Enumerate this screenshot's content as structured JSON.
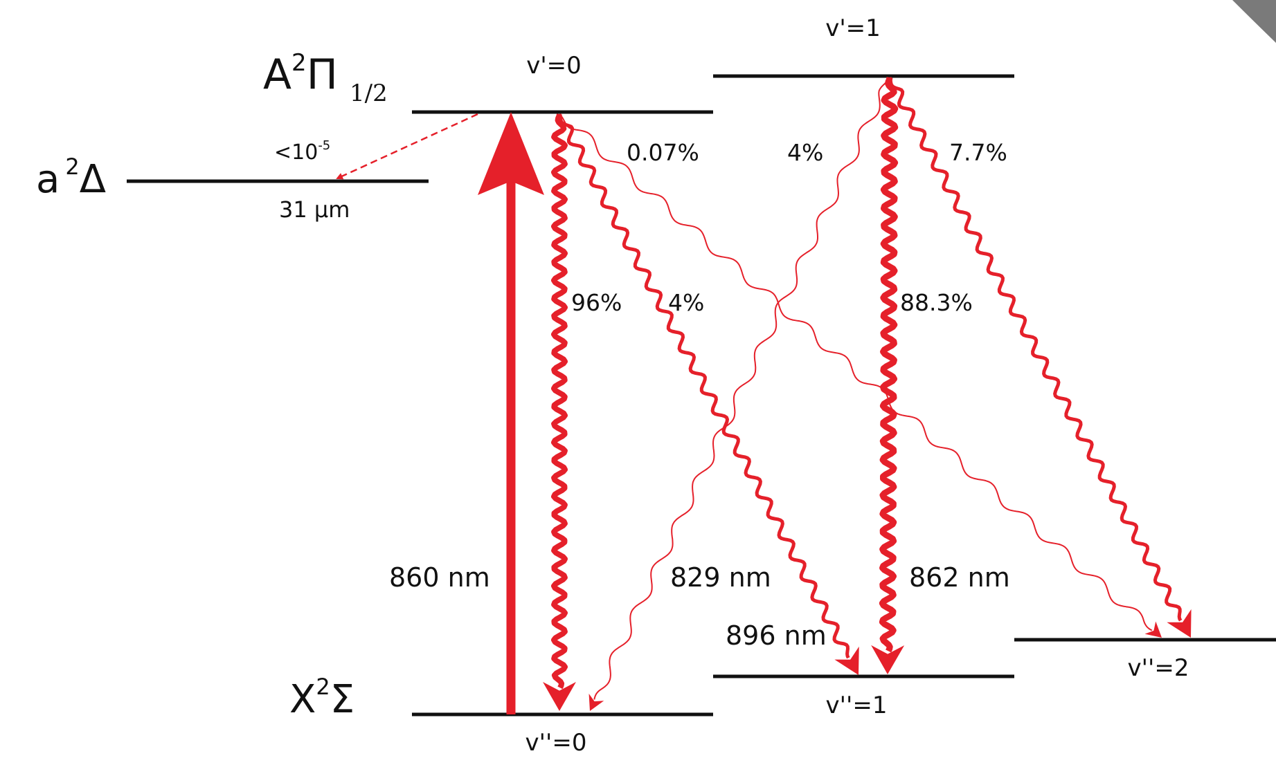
{
  "colors": {
    "level": "#111111",
    "transition": "#e5202a"
  },
  "states": {
    "A": {
      "letter": "A",
      "sup": "2",
      "symbol": "Π",
      "sub": "1/2"
    },
    "a": {
      "letter": "a",
      "sup": "2",
      "symbol": "Δ"
    },
    "X": {
      "letter": "X",
      "sup": "2",
      "symbol": "Σ"
    }
  },
  "levels": {
    "A_v0": "v'=0",
    "A_v1": "v'=1",
    "X_v0": "v''=0",
    "X_v1": "v''=1",
    "X_v2": "v''=2"
  },
  "a_state": {
    "lifetime_label": "31 µm",
    "branch_base": "<10",
    "branch_exp": "-5"
  },
  "branching": {
    "v0_to_v0": "96%",
    "v0_to_v1": "4%",
    "v0_to_v2": "0.07%",
    "v1_to_v0": "4%",
    "v1_to_v1": "88.3%",
    "v1_to_v2": "7.7%"
  },
  "wavelengths": {
    "pump": "860 nm",
    "v1_to_v0": "829 nm",
    "v0_to_v1": "896 nm",
    "v1_to_v1": "862 nm"
  }
}
